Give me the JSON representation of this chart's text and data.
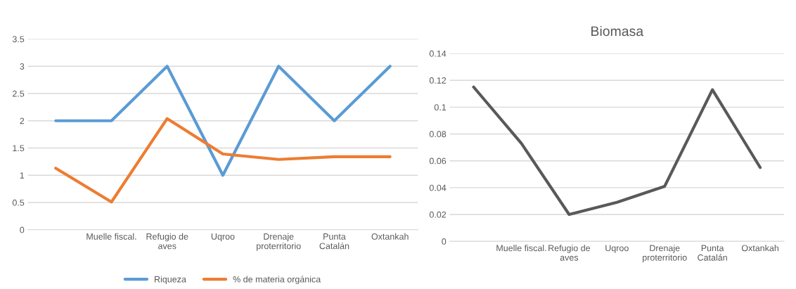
{
  "chart_data": [
    {
      "type": "line",
      "categories": [
        null,
        "Muelle fiscal.",
        "Refugio de\naves",
        "Uqroo",
        "Drenaje\nproterritorio",
        "Punta\nCatalán",
        "Oxtankah"
      ],
      "series": [
        {
          "name": "Riqueza",
          "color": "#5b9bd5",
          "values": [
            2,
            2,
            3,
            1,
            3,
            2,
            3
          ]
        },
        {
          "name": "% de materia orgánica",
          "color": "#ed7d31",
          "values": [
            1.13,
            0.51,
            2.04,
            1.39,
            1.29,
            1.34,
            1.34
          ]
        }
      ],
      "ylim": [
        0,
        3.5
      ],
      "yticks": [
        0,
        0.5,
        1,
        1.5,
        2,
        2.5,
        3,
        3.5
      ],
      "grid": "y",
      "legend": "bottom"
    },
    {
      "type": "line",
      "title": "Biomasa",
      "categories": [
        null,
        "Muelle fiscal.",
        "Refugio de\naves",
        "Uqroo",
        "Drenaje\nproterritorio",
        "Punta\nCatalán",
        "Oxtankah"
      ],
      "series": [
        {
          "color": "#595959",
          "values": [
            0.115,
            0.073,
            0.02,
            0.029,
            0.041,
            0.113,
            0.055
          ]
        }
      ],
      "ylim": [
        0,
        0.14
      ],
      "yticks": [
        0,
        0.02,
        0.04,
        0.06,
        0.08,
        0.1,
        0.12,
        0.14
      ],
      "grid": "y"
    }
  ]
}
